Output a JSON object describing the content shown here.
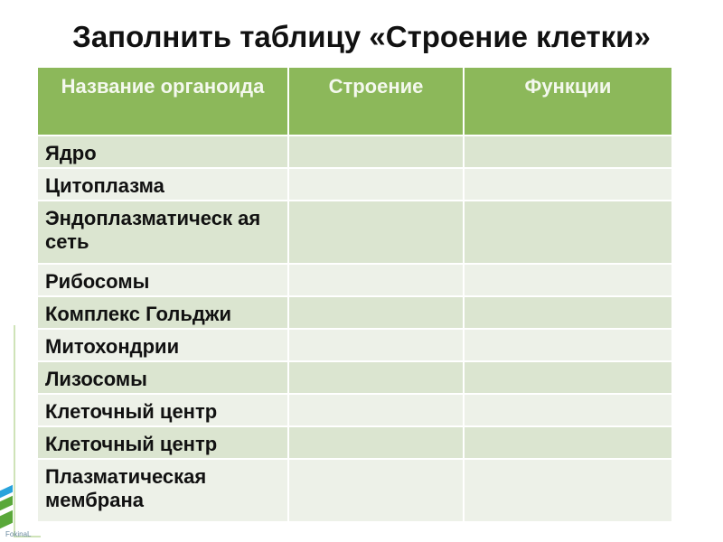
{
  "title": "Заполнить таблицу «Строение клетки»",
  "table": {
    "headers": [
      "Название органоида",
      "Строение",
      "Функции"
    ],
    "rows": [
      {
        "name": "Ядро",
        "structure": "",
        "function": ""
      },
      {
        "name": "Цитоплазма",
        "structure": "",
        "function": ""
      },
      {
        "name": "Эндоплазматическ ая сеть",
        "structure": "",
        "function": ""
      },
      {
        "name": "Рибосомы",
        "structure": "",
        "function": ""
      },
      {
        "name": "Комплекс Гольджи",
        "structure": "",
        "function": ""
      },
      {
        "name": "Митохондрии",
        "structure": "",
        "function": ""
      },
      {
        "name": "Лизосомы",
        "structure": "",
        "function": ""
      },
      {
        "name": "Клеточный центр",
        "structure": "",
        "function": ""
      },
      {
        "name": "Клеточный центр",
        "structure": "",
        "function": ""
      },
      {
        "name": "Плазматическая мембрана",
        "structure": "",
        "function": ""
      }
    ]
  },
  "footer": "FokinaL",
  "colors": {
    "header": "#8cb85a",
    "row_dark": "#dbe5d0",
    "row_light": "#edf1e8",
    "stripe_blue": "#29a3dc",
    "stripe_green": "#5aa83a"
  }
}
